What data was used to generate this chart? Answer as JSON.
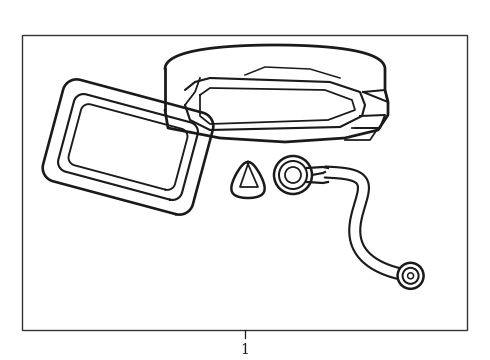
{
  "background_color": "#ffffff",
  "border_color": "#333333",
  "line_color": "#1a1a1a",
  "border_linewidth": 1.0,
  "component_linewidth": 1.8,
  "label_text": "1",
  "label_fontsize": 10,
  "figsize": [
    4.9,
    3.6
  ],
  "dpi": 100
}
